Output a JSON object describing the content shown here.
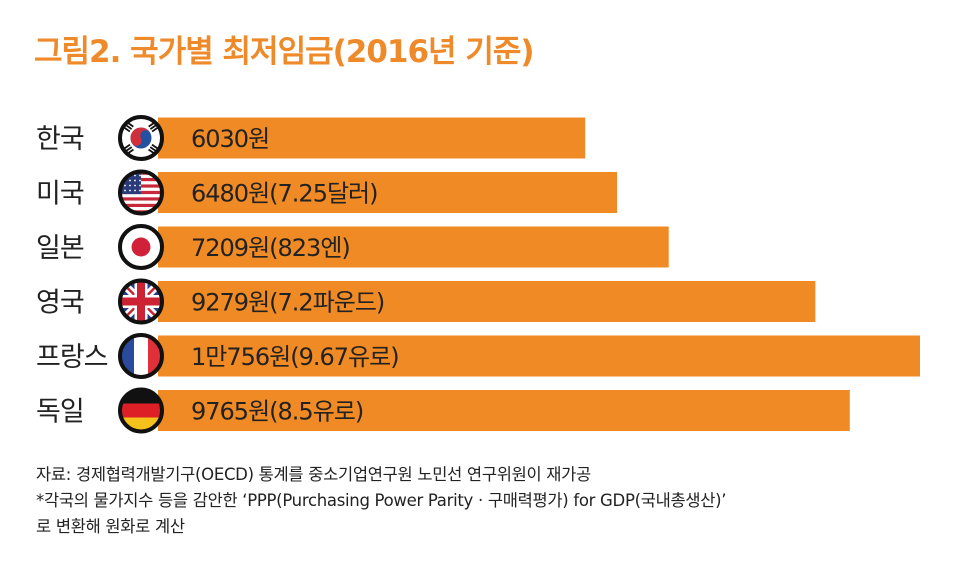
{
  "title": "그림2. 국가별 최저임금(2016년 기준)",
  "colors": {
    "accent": "#ef8a2a",
    "bar": "#f08a24",
    "text": "#222222"
  },
  "chart_data": {
    "type": "bar",
    "orientation": "horizontal",
    "title": "그림2. 국가별 최저임금(2016년 기준)",
    "unit": "원",
    "categories": [
      "한국",
      "미국",
      "일본",
      "영국",
      "프랑스",
      "독일"
    ],
    "values": [
      6030,
      6480,
      7209,
      9279,
      10756,
      9765
    ],
    "labels": [
      "6030원",
      "6480원(7.25달러)",
      "7209원(823엔)",
      "9279원(7.2파운드)",
      "1만756원(9.67유로)",
      "9765원(8.5유로)"
    ],
    "icons": [
      "korea-flag-icon",
      "usa-flag-icon",
      "japan-flag-icon",
      "uk-flag-icon",
      "france-flag-icon",
      "germany-flag-icon"
    ]
  },
  "footnote": {
    "source": "자료: 경제협력개발기구(OECD) 통계를 중소기업연구원 노민선 연구위원이 재가공",
    "note_line1": "*각국의 물가지수 등을 감안한 ‘PPP(Purchasing Power Parity · 구매력평가) for GDP(국내총생산)’",
    "note_line2": "로 변환해 원화로 계산"
  }
}
